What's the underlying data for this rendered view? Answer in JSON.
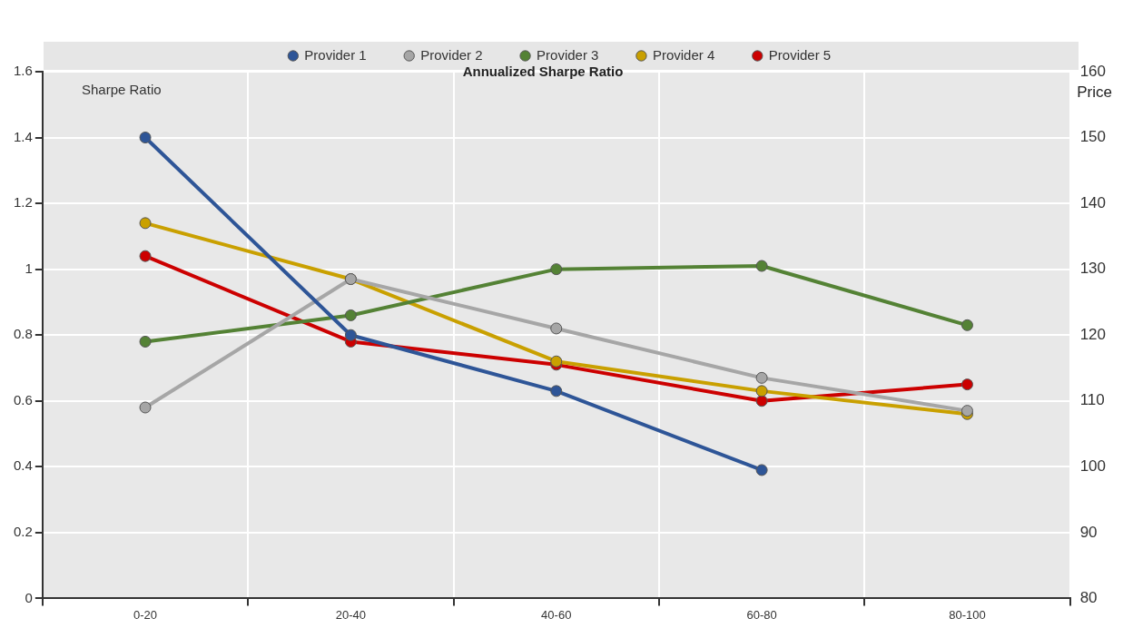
{
  "chart_data": {
    "type": "line",
    "title": "Annualized Sharpe Ratio",
    "ylabel": "Sharpe Ratio",
    "y2label": "Price",
    "categories": [
      "0-20",
      "20-40",
      "40-60",
      "60-80",
      "80-100"
    ],
    "series": [
      {
        "name": "Provider 1",
        "color": "#2e5597",
        "values": [
          1.4,
          0.8,
          0.63,
          0.39,
          null
        ]
      },
      {
        "name": "Provider 2",
        "color": "#a6a6a6",
        "values": [
          0.58,
          0.97,
          0.82,
          0.67,
          0.57
        ]
      },
      {
        "name": "Provider 3",
        "color": "#548235",
        "values": [
          0.78,
          0.86,
          1.0,
          1.01,
          0.83
        ]
      },
      {
        "name": "Provider 4",
        "color": "#c9a000",
        "values": [
          1.14,
          0.97,
          0.72,
          0.63,
          0.56
        ]
      },
      {
        "name": "Provider 5",
        "color": "#cc0000",
        "values": [
          1.04,
          0.78,
          0.71,
          0.6,
          0.65
        ]
      }
    ],
    "ylim": [
      0,
      1.6
    ],
    "yticks": [
      0,
      0.2,
      0.4,
      0.6,
      0.8,
      1,
      1.2,
      1.4,
      1.6
    ],
    "y2lim": [
      80,
      160
    ],
    "y2ticks": [
      80,
      90,
      100,
      110,
      120,
      130,
      140,
      150,
      160
    ],
    "grid": true,
    "legend": "top",
    "marker": "circle",
    "line_style": "solid"
  }
}
